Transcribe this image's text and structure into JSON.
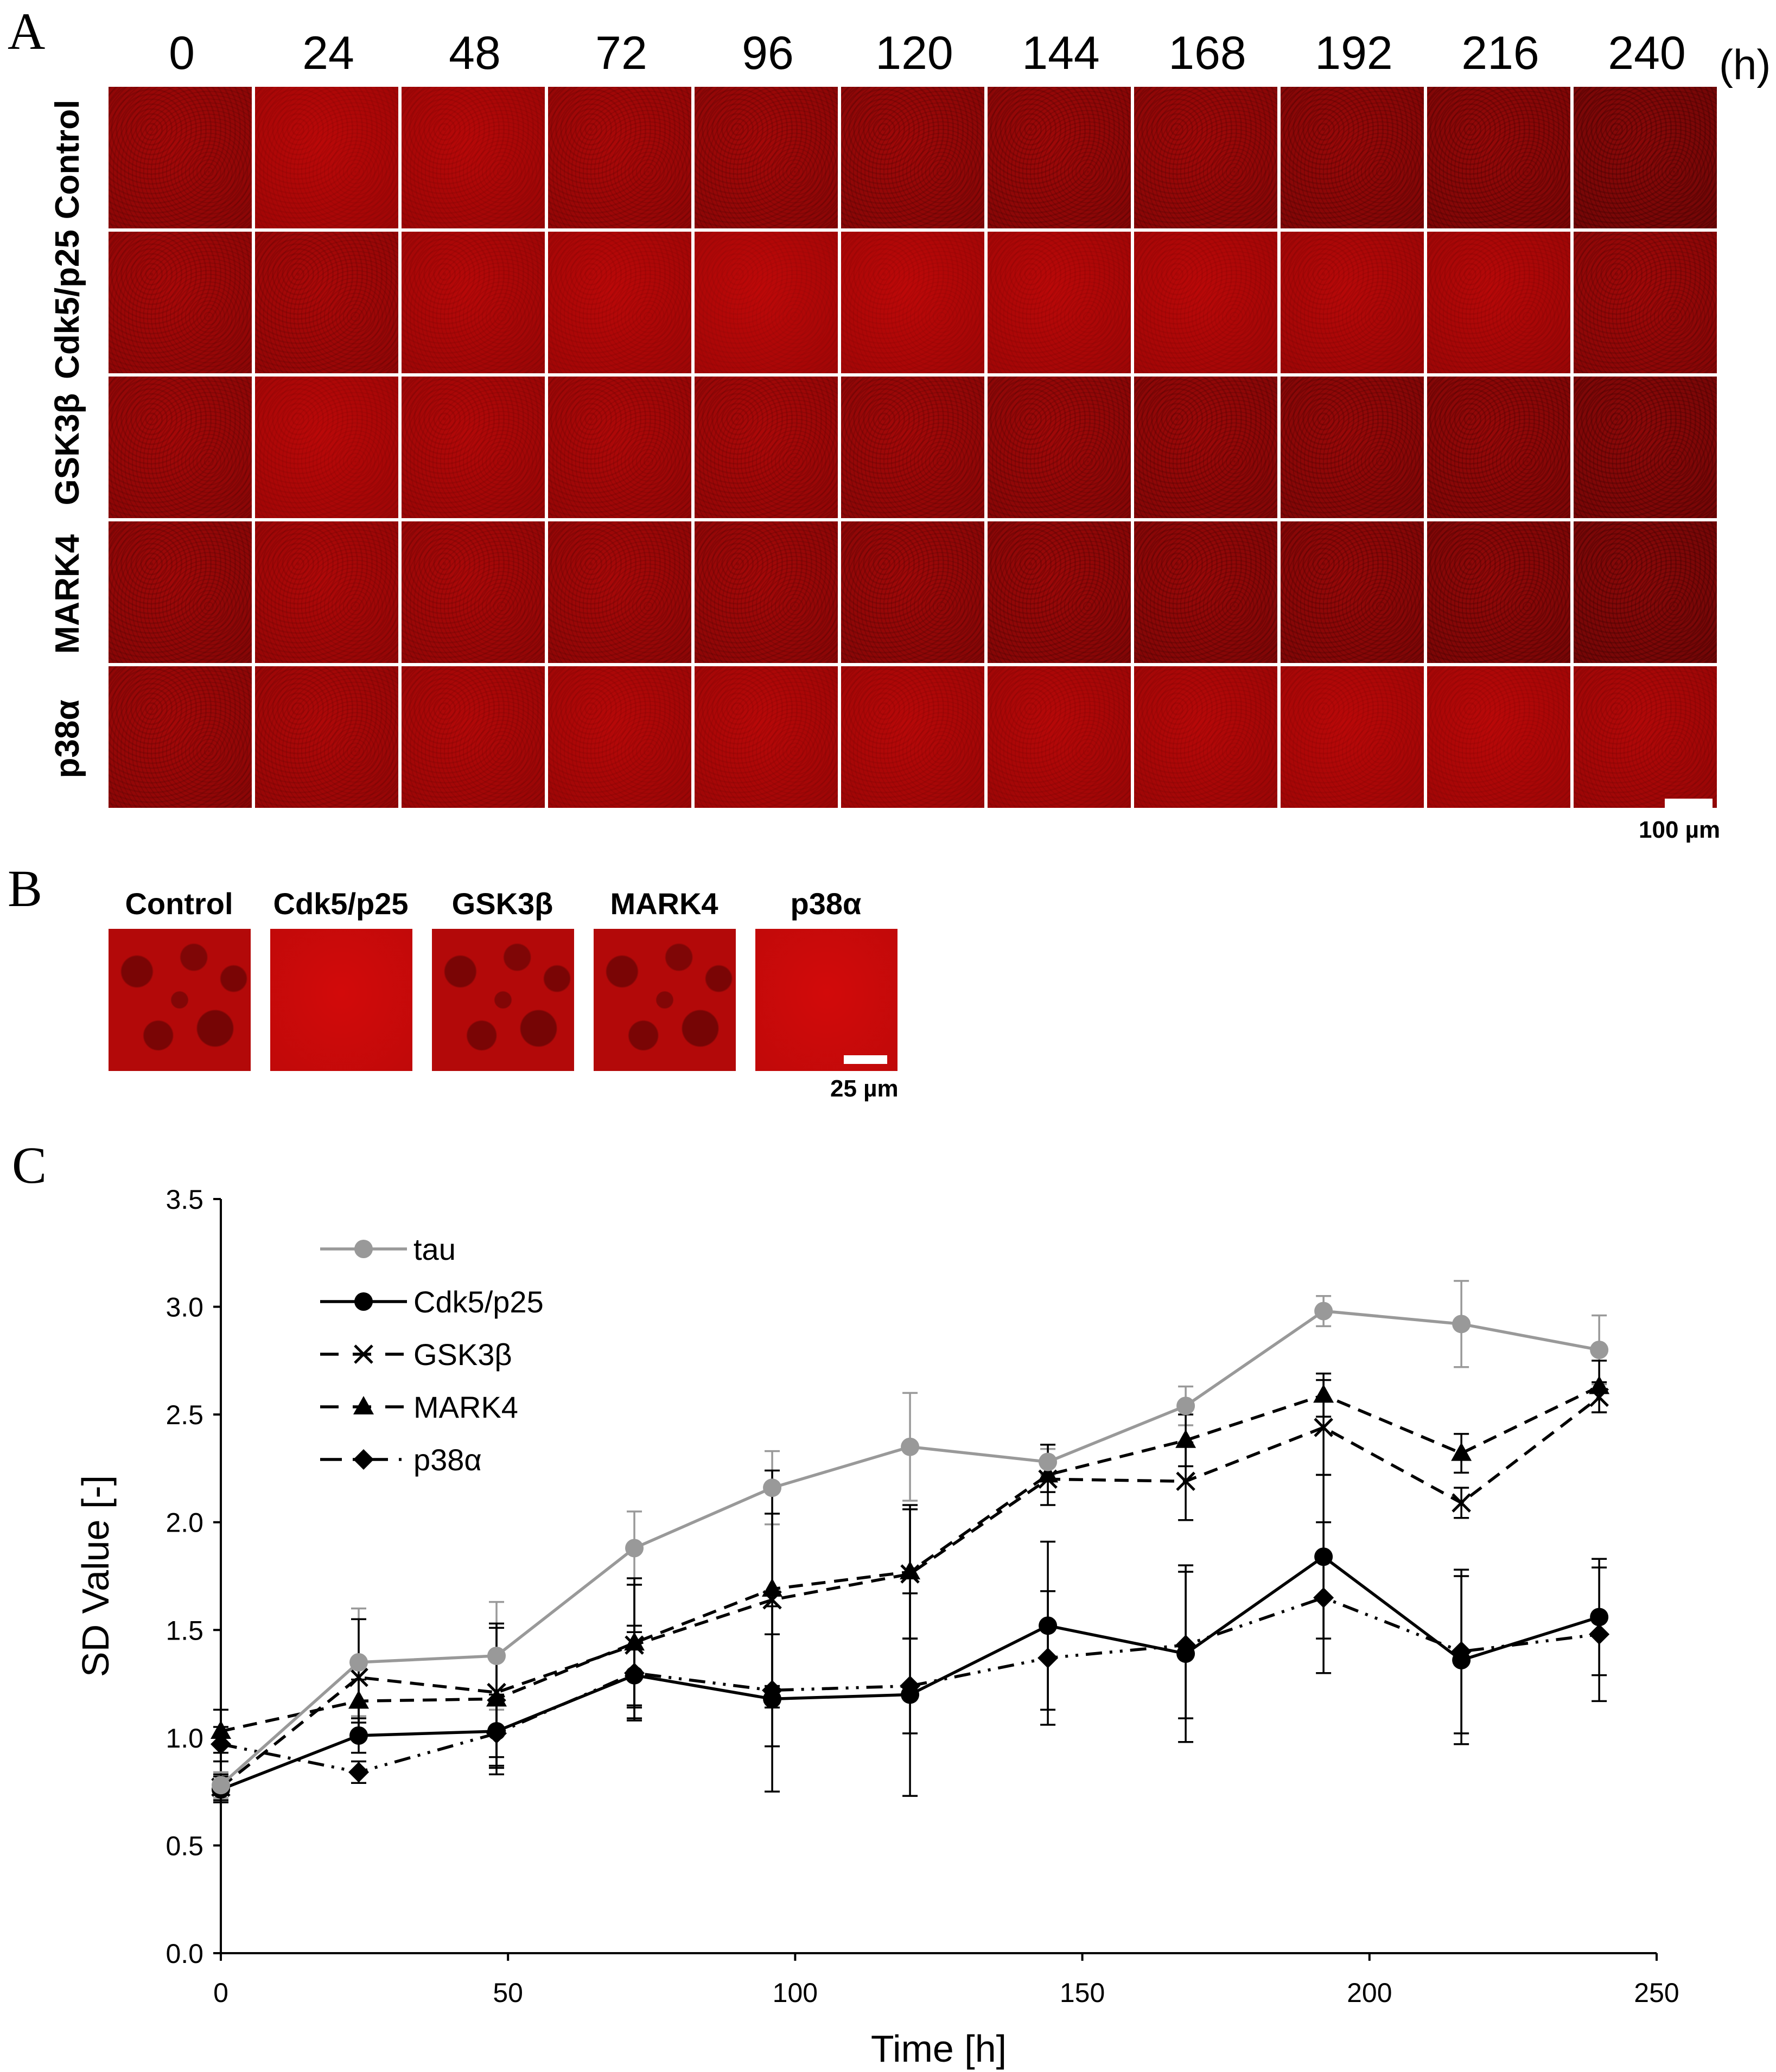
{
  "panel_a": {
    "letter": "A",
    "time_labels": [
      "0",
      "24",
      "48",
      "72",
      "96",
      "120",
      "144",
      "168",
      "192",
      "216",
      "240"
    ],
    "time_unit": "(h)",
    "row_labels": [
      "Control",
      "Cdk5/p25",
      "GSK3β",
      "MARK4",
      "p38α"
    ],
    "scale_label": "100 µm"
  },
  "panel_b": {
    "letter": "B",
    "labels": [
      "Control",
      "Cdk5/p25",
      "GSK3β",
      "MARK4",
      "p38α"
    ],
    "scale_label": "25 µm"
  },
  "panel_c": {
    "letter": "C"
  },
  "colors": {
    "tile_red": "#c40a0a",
    "tile_dark_red": "#8c0606",
    "tau_gray": "#999999",
    "line_black": "#000000"
  },
  "chart_data": {
    "type": "line",
    "xlabel": "Time [h]",
    "ylabel": "SD Value [-]",
    "xlim": [
      0,
      250
    ],
    "ylim": [
      0,
      3.5
    ],
    "x_ticks": [
      0,
      50,
      100,
      150,
      200,
      250
    ],
    "y_ticks": [
      "0.0",
      "0.5",
      "1.0",
      "1.5",
      "2.0",
      "2.5",
      "3.0",
      "3.5"
    ],
    "x": [
      0,
      24,
      48,
      72,
      96,
      120,
      144,
      168,
      192,
      216,
      240
    ],
    "legend_position": "top-left",
    "series": [
      {
        "name": "tau",
        "color": "#999999",
        "dash": "solid",
        "marker": "circle",
        "values": [
          0.78,
          1.35,
          1.38,
          1.88,
          2.16,
          2.35,
          2.28,
          2.54,
          2.98,
          2.92,
          2.8
        ],
        "errors": [
          0.06,
          0.25,
          0.25,
          0.17,
          0.17,
          0.25,
          0.06,
          0.09,
          0.07,
          0.2,
          0.16
        ]
      },
      {
        "name": "Cdk5/p25",
        "color": "#000000",
        "dash": "solid",
        "marker": "circle",
        "values": [
          0.76,
          1.01,
          1.03,
          1.29,
          1.18,
          1.2,
          1.52,
          1.39,
          1.84,
          1.36,
          1.56
        ],
        "errors": [
          0.06,
          0.08,
          0.17,
          0.2,
          0.43,
          0.47,
          0.39,
          0.41,
          0.38,
          0.39,
          0.27
        ]
      },
      {
        "name": "GSK3β",
        "color": "#000000",
        "dash": "dashed",
        "marker": "x",
        "values": [
          0.77,
          1.28,
          1.21,
          1.43,
          1.64,
          1.76,
          2.2,
          2.19,
          2.44,
          2.09,
          2.58
        ],
        "errors": [
          0.06,
          0.27,
          0.3,
          0.28,
          0.4,
          0.3,
          0.06,
          0.18,
          0.22,
          0.07,
          0.07
        ]
      },
      {
        "name": "MARK4",
        "color": "#000000",
        "dash": "dashed",
        "marker": "triangle",
        "values": [
          1.03,
          1.17,
          1.18,
          1.44,
          1.69,
          1.77,
          2.22,
          2.38,
          2.59,
          2.32,
          2.63
        ],
        "errors": [
          0.1,
          0.1,
          0.35,
          0.3,
          0.55,
          0.31,
          0.14,
          0.12,
          0.1,
          0.09,
          0.12
        ]
      },
      {
        "name": "p38α",
        "color": "#000000",
        "dash": "dashdotdot",
        "marker": "diamond",
        "values": [
          0.97,
          0.84,
          1.02,
          1.3,
          1.22,
          1.24,
          1.37,
          1.43,
          1.65,
          1.4,
          1.48
        ],
        "errors": [
          0.08,
          0.05,
          0.15,
          0.22,
          0.26,
          0.22,
          0.31,
          0.34,
          0.35,
          0.38,
          0.31
        ]
      }
    ]
  }
}
